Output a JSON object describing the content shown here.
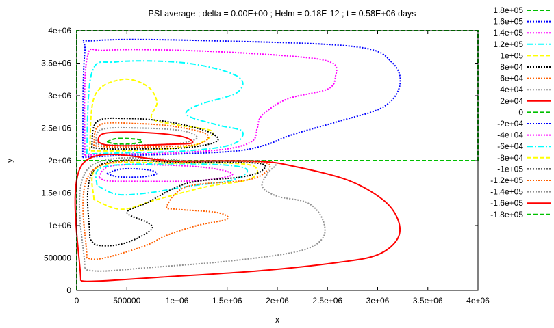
{
  "chart_data": {
    "type": "contour",
    "title": "PSI average ; delta =  0.00E+00  ; Helm =  0.18E-12  ; t =  0.58E+06  days",
    "xlabel": "x",
    "ylabel": "y",
    "xlim": [
      0,
      4000000
    ],
    "ylim": [
      0,
      4000000
    ],
    "x_ticks": [
      "0",
      "500000",
      "1e+06",
      "1.5e+06",
      "2e+06",
      "2.5e+06",
      "3e+06",
      "3.5e+06",
      "4e+06"
    ],
    "y_ticks": [
      "0",
      "500000",
      "1e+06",
      "1.5e+06",
      "2e+06",
      "2.5e+06",
      "3e+06",
      "3.5e+06",
      "4e+06"
    ],
    "legend_position": "right",
    "series": [
      {
        "name": "1.8e+05",
        "level": 180000,
        "color": "#00c000",
        "dash": "dashed",
        "contours": [
          [
            [
              0,
              2000000
            ],
            [
              4000000,
              2000000
            ],
            [
              4000000,
              4000000
            ],
            [
              0,
              4000000
            ],
            [
              0,
              2000000
            ]
          ]
        ]
      },
      {
        "name": "1.6e+05",
        "level": 160000,
        "color": "#0000ff",
        "dash": "dotted",
        "contours": [
          [
            [
              60000,
              2050000
            ],
            [
              80000,
              3650000
            ],
            [
              200000,
              3850000
            ],
            [
              1500000,
              3840000
            ],
            [
              2800000,
              3750000
            ],
            [
              3150000,
              3500000
            ],
            [
              3220000,
              3150000
            ],
            [
              3050000,
              2820000
            ],
            [
              2600000,
              2600000
            ],
            [
              2150000,
              2400000
            ],
            [
              1900000,
              2250000
            ],
            [
              1600000,
              2150000
            ],
            [
              1000000,
              2100000
            ],
            [
              500000,
              2080000
            ],
            [
              200000,
              2060000
            ],
            [
              60000,
              2050000
            ]
          ]
        ]
      },
      {
        "name": "1.4e+05",
        "level": 140000,
        "color": "#ff00ff",
        "dash": "dotted",
        "contours": [
          [
            [
              80000,
              2080000
            ],
            [
              100000,
              3550000
            ],
            [
              300000,
              3700000
            ],
            [
              1200000,
              3690000
            ],
            [
              2200000,
              3600000
            ],
            [
              2550000,
              3500000
            ],
            [
              2580000,
              3300000
            ],
            [
              2500000,
              3100000
            ],
            [
              2100000,
              2950000
            ],
            [
              1850000,
              2700000
            ],
            [
              1800000,
              2500000
            ],
            [
              1750000,
              2300000
            ],
            [
              1500000,
              2180000
            ],
            [
              1000000,
              2120000
            ],
            [
              500000,
              2100000
            ],
            [
              200000,
              2090000
            ],
            [
              80000,
              2080000
            ]
          ]
        ]
      },
      {
        "name": "1.2e+05",
        "level": 120000,
        "color": "#00ffff",
        "dash": "dashdot",
        "contours": [
          [
            [
              100000,
              2100000
            ],
            [
              150000,
              3350000
            ],
            [
              400000,
              3520000
            ],
            [
              1100000,
              3500000
            ],
            [
              1600000,
              3300000
            ],
            [
              1600000,
              3050000
            ],
            [
              1200000,
              2850000
            ],
            [
              1100000,
              2700000
            ],
            [
              1400000,
              2550000
            ],
            [
              1650000,
              2450000
            ],
            [
              1550000,
              2250000
            ],
            [
              1100000,
              2150000
            ],
            [
              500000,
              2120000
            ],
            [
              250000,
              2110000
            ],
            [
              100000,
              2100000
            ]
          ]
        ]
      },
      {
        "name": "1e+05",
        "level": 100000,
        "color": "#ffff00",
        "dash": "dashed",
        "contours": [
          [
            [
              130000,
              2150000
            ],
            [
              180000,
              3000000
            ],
            [
              450000,
              3250000
            ],
            [
              700000,
              3150000
            ],
            [
              800000,
              2900000
            ],
            [
              750000,
              2650000
            ],
            [
              1000000,
              2550000
            ],
            [
              1350000,
              2450000
            ],
            [
              1200000,
              2250000
            ],
            [
              800000,
              2170000
            ],
            [
              400000,
              2150000
            ],
            [
              130000,
              2150000
            ]
          ]
        ]
      },
      {
        "name": "8e+04",
        "level": 80000,
        "color": "#000000",
        "dash": "dotted",
        "contours": [
          [
            [
              150000,
              2200000
            ],
            [
              200000,
              2600000
            ],
            [
              500000,
              2650000
            ],
            [
              900000,
              2600000
            ],
            [
              1300000,
              2450000
            ],
            [
              1400000,
              2300000
            ],
            [
              1100000,
              2200000
            ],
            [
              600000,
              2180000
            ],
            [
              300000,
              2180000
            ],
            [
              150000,
              2200000
            ]
          ]
        ]
      },
      {
        "name": "6e+04",
        "level": 60000,
        "color": "#ff6000",
        "dash": "dotted",
        "contours": [
          [
            [
              170000,
              2230000
            ],
            [
              230000,
              2550000
            ],
            [
              600000,
              2570000
            ],
            [
              1000000,
              2520000
            ],
            [
              1300000,
              2400000
            ],
            [
              1200000,
              2250000
            ],
            [
              700000,
              2210000
            ],
            [
              350000,
              2210000
            ],
            [
              170000,
              2230000
            ]
          ]
        ]
      },
      {
        "name": "4e+04",
        "level": 40000,
        "color": "#909090",
        "dash": "dotted",
        "contours": [
          [
            [
              190000,
              2260000
            ],
            [
              250000,
              2480000
            ],
            [
              650000,
              2500000
            ],
            [
              1050000,
              2460000
            ],
            [
              1200000,
              2350000
            ],
            [
              1000000,
              2260000
            ],
            [
              600000,
              2240000
            ],
            [
              300000,
              2240000
            ],
            [
              190000,
              2260000
            ]
          ]
        ]
      },
      {
        "name": "2e+04",
        "level": 20000,
        "color": "#ff0000",
        "dash": "solid",
        "contours": [
          [
            [
              210000,
              2290000
            ],
            [
              280000,
              2420000
            ],
            [
              700000,
              2430000
            ],
            [
              1050000,
              2370000
            ],
            [
              1150000,
              2270000
            ],
            [
              900000,
              2250000
            ],
            [
              550000,
              2230000
            ],
            [
              300000,
              2240000
            ],
            [
              210000,
              2290000
            ]
          ]
        ]
      },
      {
        "name": "0",
        "level": 0,
        "color": "#00c000",
        "dash": "dashed",
        "contours": [
          [
            [
              0,
              2000000
            ],
            [
              4000000,
              2000000
            ]
          ],
          [
            [
              0,
              0
            ],
            [
              0,
              4000000
            ]
          ],
          [
            [
              300000,
              2290000
            ],
            [
              400000,
              2340000
            ],
            [
              600000,
              2330000
            ],
            [
              650000,
              2290000
            ],
            [
              550000,
              2260000
            ],
            [
              380000,
              2260000
            ],
            [
              300000,
              2290000
            ]
          ]
        ]
      },
      {
        "name": "-2e+04",
        "level": -20000,
        "color": "#0000ff",
        "dash": "dotted",
        "contours": [
          [
            [
              300000,
              1800000
            ],
            [
              450000,
              1870000
            ],
            [
              700000,
              1860000
            ],
            [
              800000,
              1800000
            ],
            [
              650000,
              1750000
            ],
            [
              420000,
              1750000
            ],
            [
              300000,
              1800000
            ]
          ]
        ]
      },
      {
        "name": "-4e+04",
        "level": -40000,
        "color": "#ff00ff",
        "dash": "dotted",
        "contours": [
          [
            [
              220000,
              1750000
            ],
            [
              350000,
              1920000
            ],
            [
              900000,
              1930000
            ],
            [
              1350000,
              1880000
            ],
            [
              1550000,
              1780000
            ],
            [
              1200000,
              1690000
            ],
            [
              600000,
              1680000
            ],
            [
              300000,
              1690000
            ],
            [
              220000,
              1750000
            ]
          ]
        ]
      },
      {
        "name": "-6e+04",
        "level": -60000,
        "color": "#00ffff",
        "dash": "dashdot",
        "contours": [
          [
            [
              200000,
              1620000
            ],
            [
              260000,
              1900000
            ],
            [
              900000,
              1950000
            ],
            [
              1500000,
              1930000
            ],
            [
              1700000,
              1850000
            ],
            [
              1550000,
              1700000
            ],
            [
              1100000,
              1600000
            ],
            [
              700000,
              1500000
            ],
            [
              400000,
              1480000
            ],
            [
              200000,
              1620000
            ]
          ]
        ]
      },
      {
        "name": "-8e+04",
        "level": -80000,
        "color": "#ffff00",
        "dash": "dashed",
        "contours": [
          [
            [
              170000,
              1400000
            ],
            [
              230000,
              1920000
            ],
            [
              1000000,
              1960000
            ],
            [
              1650000,
              1950000
            ],
            [
              1800000,
              1850000
            ],
            [
              1700000,
              1700000
            ],
            [
              1300000,
              1600000
            ],
            [
              800000,
              1400000
            ],
            [
              450000,
              1250000
            ],
            [
              170000,
              1400000
            ]
          ]
        ]
      },
      {
        "name": "-1e+05",
        "level": -100000,
        "color": "#000000",
        "dash": "dotted",
        "contours": [
          [
            [
              130000,
              800000
            ],
            [
              200000,
              1900000
            ],
            [
              1100000,
              1970000
            ],
            [
              1800000,
              1960000
            ],
            [
              1850000,
              1850000
            ],
            [
              1650000,
              1750000
            ],
            [
              1100000,
              1650000
            ],
            [
              700000,
              1350000
            ],
            [
              500000,
              1200000
            ],
            [
              700000,
              1050000
            ],
            [
              750000,
              950000
            ],
            [
              600000,
              800000
            ],
            [
              400000,
              700000
            ],
            [
              200000,
              700000
            ],
            [
              130000,
              800000
            ]
          ]
        ]
      },
      {
        "name": "-1.2e+05",
        "level": -120000,
        "color": "#ff6000",
        "dash": "dotted",
        "contours": [
          [
            [
              100000,
              500000
            ],
            [
              160000,
              1850000
            ],
            [
              1200000,
              1980000
            ],
            [
              1850000,
              1970000
            ],
            [
              1900000,
              1850000
            ],
            [
              1700000,
              1700000
            ],
            [
              1100000,
              1600000
            ],
            [
              900000,
              1300000
            ],
            [
              1000000,
              1250000
            ],
            [
              1400000,
              1200000
            ],
            [
              1500000,
              1100000
            ],
            [
              1200000,
              1000000
            ],
            [
              900000,
              850000
            ],
            [
              700000,
              700000
            ],
            [
              400000,
              550000
            ],
            [
              200000,
              480000
            ],
            [
              100000,
              500000
            ]
          ]
        ]
      },
      {
        "name": "-1.4e+05",
        "level": -140000,
        "color": "#909090",
        "dash": "dotted",
        "contours": [
          [
            [
              80000,
              350000
            ],
            [
              130000,
              1900000
            ],
            [
              1300000,
              1985000
            ],
            [
              1950000,
              1980000
            ],
            [
              1900000,
              1800000
            ],
            [
              1850000,
              1600000
            ],
            [
              2000000,
              1450000
            ],
            [
              2300000,
              1350000
            ],
            [
              2450000,
              1100000
            ],
            [
              2450000,
              800000
            ],
            [
              2200000,
              600000
            ],
            [
              1500000,
              450000
            ],
            [
              700000,
              350000
            ],
            [
              300000,
              300000
            ],
            [
              120000,
              310000
            ],
            [
              80000,
              350000
            ]
          ]
        ]
      },
      {
        "name": "-1.6e+05",
        "level": -160000,
        "color": "#ff0000",
        "dash": "solid",
        "contours": [
          [
            [
              40000,
              150000
            ],
            [
              60000,
              1950000
            ],
            [
              1000000,
              1990000
            ],
            [
              1800000,
              1990000
            ],
            [
              2200000,
              1900000
            ],
            [
              2700000,
              1700000
            ],
            [
              3050000,
              1400000
            ],
            [
              3200000,
              1100000
            ],
            [
              3200000,
              800000
            ],
            [
              3000000,
              550000
            ],
            [
              2600000,
              430000
            ],
            [
              1800000,
              300000
            ],
            [
              800000,
              200000
            ],
            [
              300000,
              150000
            ],
            [
              100000,
              140000
            ],
            [
              40000,
              150000
            ]
          ]
        ]
      },
      {
        "name": "-1.8e+05",
        "level": -180000,
        "color": "#00c000",
        "dash": "dashed",
        "contours": []
      }
    ]
  }
}
